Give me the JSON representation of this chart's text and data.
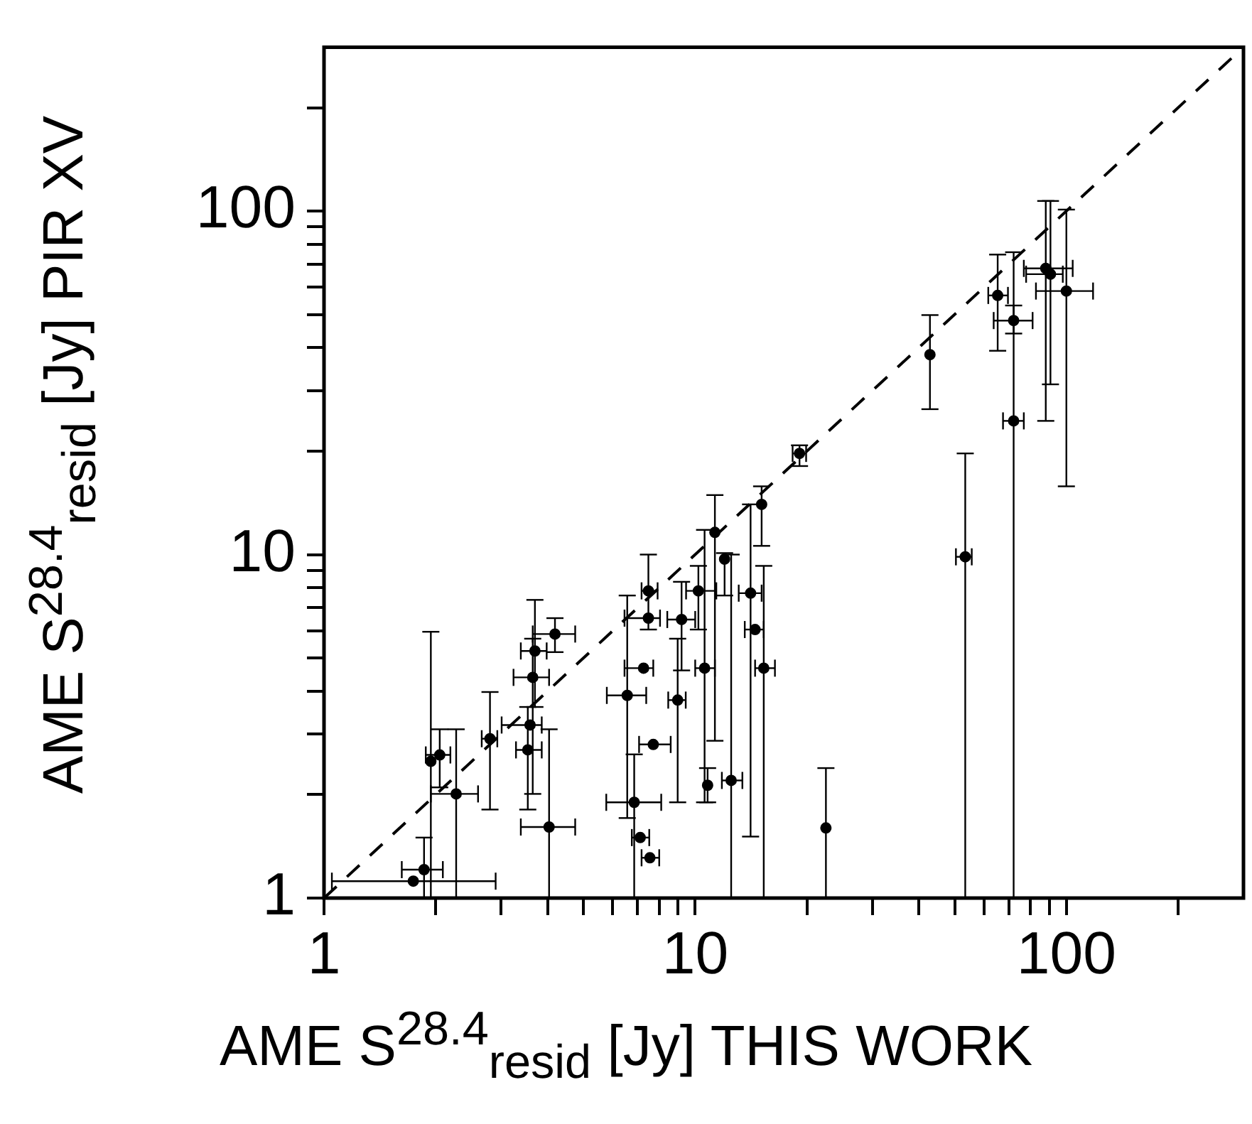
{
  "chart_data": {
    "type": "scatter",
    "xlabel": "AME S$^{28.4}$$_{resid}$ [Jy] THIS WORK",
    "ylabel": "AME S$^{28.4}$$_{resid}$ [Jy] PIR XV",
    "log": "xy",
    "grid": false,
    "legend": false,
    "marker": "circle",
    "xlim": [
      1,
      300
    ],
    "ylim": [
      1,
      300
    ],
    "xticks": [
      1,
      {
        "value": 2,
        "label": null
      },
      {
        "value": 3,
        "label": null
      },
      {
        "value": 4,
        "label": null
      },
      {
        "value": 5,
        "label": null
      },
      {
        "value": 6,
        "label": null
      },
      {
        "value": 7,
        "label": null
      },
      {
        "value": 8,
        "label": null
      },
      {
        "value": 9,
        "label": null
      },
      10,
      {
        "value": 20,
        "label": null
      },
      {
        "value": 30,
        "label": null
      },
      {
        "value": 40,
        "label": null
      },
      {
        "value": 50,
        "label": null
      },
      {
        "value": 60,
        "label": null
      },
      {
        "value": 70,
        "label": null
      },
      {
        "value": 80,
        "label": null
      },
      {
        "value": 90,
        "label": null
      },
      100,
      {
        "value": 200,
        "label": null
      }
    ],
    "yticks": [
      1,
      {
        "value": 2,
        "label": null
      },
      {
        "value": 3,
        "label": null
      },
      {
        "value": 4,
        "label": null
      },
      {
        "value": 5,
        "label": null
      },
      {
        "value": 6,
        "label": null
      },
      {
        "value": 7,
        "label": null
      },
      {
        "value": 8,
        "label": null
      },
      {
        "value": 9,
        "label": null
      },
      10,
      {
        "value": 20,
        "label": null
      },
      {
        "value": 30,
        "label": null
      },
      {
        "value": 40,
        "label": null
      },
      {
        "value": 50,
        "label": null
      },
      {
        "value": 60,
        "label": null
      },
      {
        "value": 70,
        "label": null
      },
      {
        "value": 80,
        "label": null
      },
      {
        "value": 90,
        "label": null
      },
      100,
      {
        "value": 200,
        "label": null
      }
    ],
    "series": [
      {
        "type": "scatter",
        "color": "#000000",
        "x": [
          1.86,
          1.74,
          2.05,
          2.27,
          1.94,
          2.8,
          3.7,
          3.65,
          3.54,
          3.59,
          4.19,
          4.04,
          6.56,
          6.85,
          7.11,
          7.55,
          7.71,
          7.48,
          7.48,
          7.26,
          9.19,
          8.97,
          10.2,
          10.6,
          11.3,
          12,
          10.8,
          12.5,
          14.1,
          14.5,
          15.3,
          15.1,
          19.1,
          22.5,
          42.9,
          53.4,
          65.3,
          72.1,
          72.1,
          88,
          90.6,
          100
        ],
        "values": [
          1.21,
          1.12,
          2.61,
          2.01,
          2.5,
          2.91,
          5.24,
          4.39,
          2.7,
          3.19,
          5.87,
          1.61,
          3.89,
          1.9,
          1.5,
          1.31,
          2.8,
          7.84,
          6.53,
          4.67,
          6.47,
          3.77,
          7.84,
          4.67,
          11.6,
          9.7,
          2.13,
          2.2,
          7.72,
          6.05,
          4.67,
          14,
          19.7,
          1.6,
          38.2,
          9.85,
          56.8,
          48,
          24.5,
          68.1,
          65.5,
          58.5
        ],
        "errors": [
          [
            1,
            1.5
          ],
          null,
          [
            2.1,
            3.1
          ],
          [
            1,
            3.1
          ],
          [
            1,
            5.96
          ],
          [
            1.81,
            3.98
          ],
          [
            3.6,
            7.38
          ],
          [
            2.01,
            5.69
          ],
          [
            1.81,
            3.6
          ],
          null,
          [
            5.2,
            6.53
          ],
          [
            1,
            3.1
          ],
          [
            1.71,
            7.6
          ],
          [
            1,
            2.62
          ],
          null,
          null,
          null,
          [
            6.05,
            10
          ],
          null,
          null,
          [
            4.6,
            8.33
          ],
          [
            1.9,
            5.69
          ],
          [
            6.05,
            9.27
          ],
          [
            1.9,
            11.8
          ],
          [
            2.87,
            14.9
          ],
          [
            7.6,
            10.1
          ],
          [
            1.9,
            2.39
          ],
          [
            1,
            10
          ],
          [
            1.51,
            14
          ],
          null,
          [
            1,
            9.27
          ],
          [
            10.6,
            15.8
          ],
          [
            18.1,
            20.8
          ],
          [
            1,
            2.39
          ],
          [
            26.5,
            49.8
          ],
          [
            1,
            19.7
          ],
          [
            39.2,
            74.7
          ],
          [
            44,
            75.9
          ],
          [
            1,
            53.1
          ],
          [
            24.5,
            107
          ],
          [
            31.3,
            107
          ],
          [
            15.8,
            101
          ]
        ],
        "xerrors": [
          [
            1.62,
            2.09
          ],
          [
            1.05,
            2.9
          ],
          [
            1.88,
            2.19
          ],
          [
            1.94,
            2.6
          ],
          null,
          [
            2.66,
            2.93
          ],
          [
            3.39,
            3.98
          ],
          [
            3.24,
            4.04
          ],
          [
            3.29,
            3.86
          ],
          [
            3.01,
            3.86
          ],
          [
            3.65,
            4.75
          ],
          [
            3.39,
            4.75
          ],
          [
            5.78,
            7.38
          ],
          [
            5.76,
            8.1
          ],
          [
            6.75,
            7.52
          ],
          [
            7.17,
            8.0
          ],
          [
            7.06,
            8.59
          ],
          [
            7.17,
            7.92
          ],
          [
            6.45,
            8.04
          ],
          [
            6.45,
            7.71
          ],
          [
            8.41,
            10
          ],
          [
            8.46,
            9.43
          ],
          [
            9.45,
            11.4
          ],
          [
            10,
            11.3
          ],
          null,
          null,
          null,
          [
            11.8,
            13.4
          ],
          [
            13.1,
            15.1
          ],
          [
            13.6,
            15.3
          ],
          [
            14.5,
            16.4
          ],
          null,
          [
            18.3,
            19.9
          ],
          null,
          null,
          [
            50.4,
            55.6
          ],
          [
            61.6,
            69.6
          ],
          [
            63.7,
            81.1
          ],
          [
            67.5,
            76.8
          ],
          [
            76.8,
            104
          ],
          [
            77.9,
            97.8
          ],
          [
            82.8,
            118
          ]
        ]
      },
      {
        "type": "line",
        "color": "#000000",
        "x": [
          1,
          300
        ],
        "values": [
          1,
          300
        ],
        "line_style": "dashed",
        "marker": "none"
      }
    ]
  }
}
